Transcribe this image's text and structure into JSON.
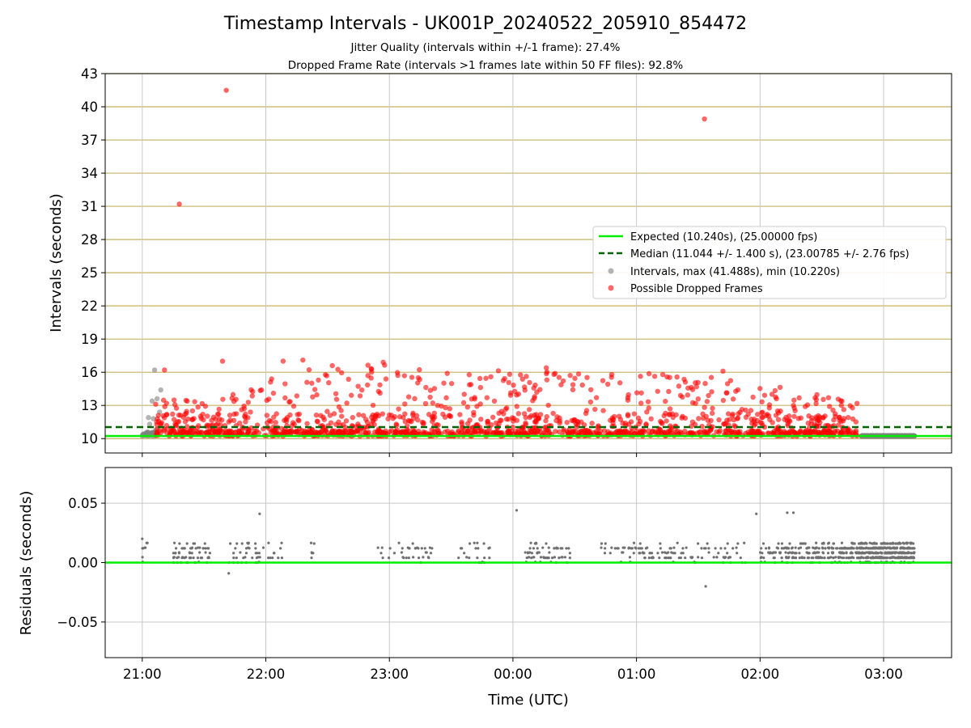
{
  "title": "Timestamp Intervals - UK001P_20240522_205910_854472",
  "subtitle_1": "Jitter Quality (intervals within +/-1 frame): 27.4%",
  "subtitle_2": "Dropped Frame Rate (intervals >1 frames late within 50 FF files): 92.8%",
  "colors": {
    "expected": "#00ee00",
    "median": "#006400",
    "intervals": "#808080",
    "dropped": "#ff0000",
    "hgrid": "#c8b060",
    "vgrid": "#c8c8c8",
    "residual_dots": "#707070"
  },
  "chart_data": [
    {
      "type": "scatter",
      "ylabel": "Intervals (seconds)",
      "ylim": [
        8.7,
        43
      ],
      "yticks": [
        10,
        13,
        16,
        19,
        22,
        25,
        28,
        31,
        34,
        37,
        40,
        43
      ],
      "xlim_hours": [
        20.7,
        27.55
      ],
      "x_tick_hours": [
        21,
        22,
        23,
        24,
        25,
        26,
        27
      ],
      "x_tick_labels": [
        "21:00",
        "22:00",
        "23:00",
        "00:00",
        "01:00",
        "02:00",
        "03:00"
      ],
      "legend_position": "center-right",
      "lines": [
        {
          "label": "Expected (10.240s), (25.00000 fps)",
          "y": 10.24,
          "style": "solid"
        },
        {
          "label": "Median (11.044 +/- 1.400 s), (23.00785 +/- 2.76 fps)",
          "y": 11.044,
          "style": "dashed"
        }
      ],
      "series": [
        {
          "name": "Intervals, max (41.488s), min (10.220s)",
          "max": 41.488,
          "min": 10.22,
          "x_range_hours": [
            21.0,
            27.25
          ],
          "points": [
            {
              "x": 21.1,
              "y": 16.2
            },
            {
              "x": 21.15,
              "y": 14.4
            },
            {
              "x": 21.12,
              "y": 13.6
            },
            {
              "x": 21.08,
              "y": 13.4
            },
            {
              "x": 21.05,
              "y": 11.9
            },
            {
              "x": 21.09,
              "y": 11.8
            },
            {
              "x": 21.06,
              "y": 11.3
            },
            {
              "x": 21.11,
              "y": 10.8
            },
            {
              "x": 21.02,
              "y": 10.3
            },
            {
              "x": 21.14,
              "y": 12.4
            }
          ]
        },
        {
          "name": "Possible Dropped Frames",
          "x_range_hours": [
            21.1,
            26.8
          ],
          "outliers": [
            {
              "x": 21.68,
              "y": 41.488
            },
            {
              "x": 25.55,
              "y": 38.9
            },
            {
              "x": 21.3,
              "y": 31.2
            },
            {
              "x": 21.65,
              "y": 17.0
            },
            {
              "x": 22.14,
              "y": 17.0
            },
            {
              "x": 22.3,
              "y": 17.1
            },
            {
              "x": 22.95,
              "y": 16.9
            },
            {
              "x": 24.27,
              "y": 16.4
            },
            {
              "x": 25.7,
              "y": 16.1
            },
            {
              "x": 21.18,
              "y": 16.2
            }
          ]
        }
      ]
    },
    {
      "type": "scatter",
      "ylabel": "Residuals (seconds)",
      "xlabel": "Time (UTC)",
      "ylim": [
        -0.08,
        0.08
      ],
      "yticks": [
        0.05,
        0.0,
        -0.05
      ],
      "ytick_labels": [
        "0.05",
        "0.00",
        "−0.05"
      ],
      "zero_line": 0,
      "points": [
        {
          "x": 21.95,
          "y": 0.041
        },
        {
          "x": 24.03,
          "y": 0.044
        },
        {
          "x": 25.97,
          "y": 0.041
        },
        {
          "x": 26.22,
          "y": 0.042
        },
        {
          "x": 26.27,
          "y": 0.042
        },
        {
          "x": 21.7,
          "y": -0.009
        },
        {
          "x": 25.56,
          "y": -0.02
        },
        {
          "x": 21.0,
          "y": 0.02
        }
      ],
      "residual_range": [
        0.0,
        0.018
      ]
    }
  ]
}
